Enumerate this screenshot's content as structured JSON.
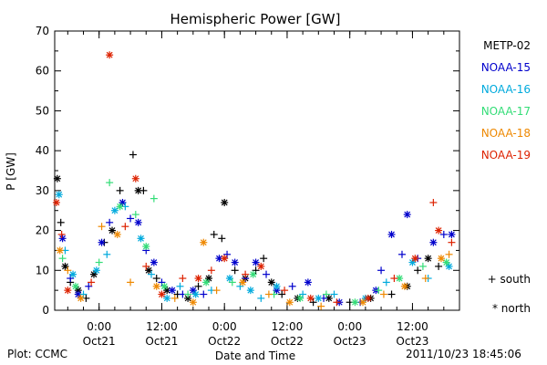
{
  "chart_data": {
    "type": "scatter",
    "title": "Hemispheric Power [GW]",
    "ylabel": "P [GW]",
    "xlabel": "Date and Time",
    "ylim": [
      0,
      70
    ],
    "y_ticks": [
      0,
      10,
      20,
      30,
      40,
      50,
      60,
      70
    ],
    "xlim": [
      "2011-10-20 15:30",
      "2011-10-23 21:00"
    ],
    "x_ticks": [
      {
        "t": "2011-10-21 00:00",
        "label1": "0:00",
        "label2": "Oct21"
      },
      {
        "t": "2011-10-21 12:00",
        "label1": "12:00",
        "label2": "Oct21"
      },
      {
        "t": "2011-10-22 00:00",
        "label1": "0:00",
        "label2": "Oct22"
      },
      {
        "t": "2011-10-22 12:00",
        "label1": "12:00",
        "label2": "Oct22"
      },
      {
        "t": "2011-10-23 00:00",
        "label1": "0:00",
        "label2": "Oct23"
      },
      {
        "t": "2011-10-23 12:00",
        "label1": "12:00",
        "label2": "Oct23"
      }
    ],
    "marker_legend": {
      "south": "+ south",
      "north": "* north"
    },
    "series": [
      {
        "name": "METP-02",
        "color": "#000000",
        "points": [
          [
            "2011-10-20 16:00",
            33,
            "n"
          ],
          [
            "2011-10-20 16:40",
            22,
            "s"
          ],
          [
            "2011-10-20 17:30",
            11,
            "n"
          ],
          [
            "2011-10-20 18:30",
            7,
            "s"
          ],
          [
            "2011-10-20 20:00",
            5,
            "n"
          ],
          [
            "2011-10-20 21:30",
            3,
            "s"
          ],
          [
            "2011-10-20 23:00",
            9,
            "n"
          ],
          [
            "2011-10-21 01:00",
            17,
            "s"
          ],
          [
            "2011-10-21 02:30",
            20,
            "n"
          ],
          [
            "2011-10-21 04:00",
            30,
            "s"
          ],
          [
            "2011-10-21 06:30",
            39,
            "s"
          ],
          [
            "2011-10-21 07:30",
            30,
            "n"
          ],
          [
            "2011-10-21 08:30",
            30,
            "s"
          ],
          [
            "2011-10-21 09:30",
            10,
            "n"
          ],
          [
            "2011-10-21 11:00",
            8,
            "s"
          ],
          [
            "2011-10-21 13:00",
            5,
            "n"
          ],
          [
            "2011-10-21 15:00",
            4,
            "s"
          ],
          [
            "2011-10-21 17:00",
            3,
            "n"
          ],
          [
            "2011-10-21 19:00",
            6,
            "s"
          ],
          [
            "2011-10-21 21:00",
            8,
            "n"
          ],
          [
            "2011-10-21 22:00",
            19,
            "s"
          ],
          [
            "2011-10-21 23:30",
            18,
            "s"
          ],
          [
            "2011-10-22 00:00",
            27,
            "n"
          ],
          [
            "2011-10-22 02:00",
            10,
            "s"
          ],
          [
            "2011-10-22 04:00",
            8,
            "n"
          ],
          [
            "2011-10-22 06:00",
            10,
            "s"
          ],
          [
            "2011-10-22 07:30",
            13,
            "s"
          ],
          [
            "2011-10-22 09:00",
            7,
            "n"
          ],
          [
            "2011-10-22 11:00",
            4,
            "s"
          ],
          [
            "2011-10-22 14:00",
            3,
            "n"
          ],
          [
            "2011-10-22 17:00",
            2,
            "s"
          ],
          [
            "2011-10-22 20:00",
            3,
            "n"
          ],
          [
            "2011-10-23 00:00",
            2,
            "s"
          ],
          [
            "2011-10-23 04:00",
            3,
            "n"
          ],
          [
            "2011-10-23 08:00",
            4,
            "s"
          ],
          [
            "2011-10-23 11:00",
            6,
            "n"
          ],
          [
            "2011-10-23 13:00",
            10,
            "s"
          ],
          [
            "2011-10-23 15:00",
            13,
            "n"
          ],
          [
            "2011-10-23 17:00",
            11,
            "s"
          ]
        ]
      },
      {
        "name": "NOAA-15",
        "color": "#0000cc",
        "points": [
          [
            "2011-10-20 17:00",
            18,
            "n"
          ],
          [
            "2011-10-20 18:30",
            8,
            "s"
          ],
          [
            "2011-10-20 20:00",
            4,
            "n"
          ],
          [
            "2011-10-20 22:00",
            6,
            "s"
          ],
          [
            "2011-10-21 00:30",
            17,
            "n"
          ],
          [
            "2011-10-21 02:00",
            22,
            "s"
          ],
          [
            "2011-10-21 04:30",
            27,
            "n"
          ],
          [
            "2011-10-21 06:00",
            23,
            "s"
          ],
          [
            "2011-10-21 07:30",
            22,
            "n"
          ],
          [
            "2011-10-21 09:00",
            15,
            "s"
          ],
          [
            "2011-10-21 10:30",
            12,
            "n"
          ],
          [
            "2011-10-21 12:00",
            7,
            "s"
          ],
          [
            "2011-10-21 14:00",
            5,
            "n"
          ],
          [
            "2011-10-21 16:00",
            4,
            "s"
          ],
          [
            "2011-10-21 18:00",
            5,
            "n"
          ],
          [
            "2011-10-21 20:00",
            4,
            "s"
          ],
          [
            "2011-10-21 23:00",
            13,
            "n"
          ],
          [
            "2011-10-22 00:30",
            14,
            "s"
          ],
          [
            "2011-10-22 02:00",
            12,
            "n"
          ],
          [
            "2011-10-22 04:00",
            8,
            "s"
          ],
          [
            "2011-10-22 06:00",
            12,
            "n"
          ],
          [
            "2011-10-22 08:00",
            9,
            "s"
          ],
          [
            "2011-10-22 10:00",
            5,
            "n"
          ],
          [
            "2011-10-22 13:00",
            6,
            "s"
          ],
          [
            "2011-10-22 16:00",
            7,
            "n"
          ],
          [
            "2011-10-22 19:00",
            3,
            "s"
          ],
          [
            "2011-10-22 22:00",
            2,
            "n"
          ],
          [
            "2011-10-23 02:00",
            2,
            "s"
          ],
          [
            "2011-10-23 05:00",
            5,
            "n"
          ],
          [
            "2011-10-23 06:00",
            10,
            "s"
          ],
          [
            "2011-10-23 08:00",
            19,
            "n"
          ],
          [
            "2011-10-23 10:00",
            14,
            "s"
          ],
          [
            "2011-10-23 11:00",
            24,
            "n"
          ],
          [
            "2011-10-23 13:00",
            13,
            "s"
          ],
          [
            "2011-10-23 16:00",
            17,
            "n"
          ],
          [
            "2011-10-23 18:00",
            19,
            "s"
          ],
          [
            "2011-10-23 19:30",
            19,
            "n"
          ]
        ]
      },
      {
        "name": "NOAA-16",
        "color": "#00aadd",
        "points": [
          [
            "2011-10-20 16:20",
            29,
            "n"
          ],
          [
            "2011-10-20 17:30",
            15,
            "s"
          ],
          [
            "2011-10-20 19:00",
            9,
            "n"
          ],
          [
            "2011-10-20 21:00",
            4,
            "s"
          ],
          [
            "2011-10-20 23:30",
            10,
            "n"
          ],
          [
            "2011-10-21 01:30",
            14,
            "s"
          ],
          [
            "2011-10-21 03:00",
            25,
            "n"
          ],
          [
            "2011-10-21 05:00",
            26,
            "s"
          ],
          [
            "2011-10-21 08:00",
            18,
            "n"
          ],
          [
            "2011-10-21 10:00",
            9,
            "s"
          ],
          [
            "2011-10-21 13:00",
            3,
            "n"
          ],
          [
            "2011-10-21 15:30",
            6,
            "s"
          ],
          [
            "2011-10-21 18:30",
            4,
            "n"
          ],
          [
            "2011-10-21 21:30",
            5,
            "s"
          ],
          [
            "2011-10-22 01:00",
            8,
            "n"
          ],
          [
            "2011-10-22 03:00",
            6,
            "s"
          ],
          [
            "2011-10-22 05:00",
            5,
            "n"
          ],
          [
            "2011-10-22 07:00",
            3,
            "s"
          ],
          [
            "2011-10-22 10:00",
            6,
            "n"
          ],
          [
            "2011-10-22 15:00",
            4,
            "s"
          ],
          [
            "2011-10-22 18:00",
            3,
            "n"
          ],
          [
            "2011-10-22 21:00",
            4,
            "s"
          ],
          [
            "2011-10-23 03:00",
            3,
            "n"
          ],
          [
            "2011-10-23 07:00",
            7,
            "s"
          ],
          [
            "2011-10-23 12:00",
            12,
            "n"
          ],
          [
            "2011-10-23 15:00",
            8,
            "s"
          ],
          [
            "2011-10-23 19:00",
            11,
            "n"
          ]
        ]
      },
      {
        "name": "NOAA-17",
        "color": "#33dd77",
        "points": [
          [
            "2011-10-20 17:00",
            13,
            "s"
          ],
          [
            "2011-10-20 19:30",
            6,
            "n"
          ],
          [
            "2011-10-21 00:00",
            12,
            "s"
          ],
          [
            "2011-10-21 02:00",
            32,
            "s"
          ],
          [
            "2011-10-21 04:00",
            26,
            "n"
          ],
          [
            "2011-10-21 07:00",
            24,
            "s"
          ],
          [
            "2011-10-21 09:00",
            16,
            "n"
          ],
          [
            "2011-10-21 10:30",
            28,
            "s"
          ],
          [
            "2011-10-21 12:30",
            6,
            "n"
          ],
          [
            "2011-10-21 17:00",
            4,
            "s"
          ],
          [
            "2011-10-21 20:30",
            7,
            "n"
          ],
          [
            "2011-10-22 01:30",
            7,
            "s"
          ],
          [
            "2011-10-22 05:30",
            9,
            "n"
          ],
          [
            "2011-10-22 09:30",
            4,
            "s"
          ],
          [
            "2011-10-22 14:30",
            3,
            "n"
          ],
          [
            "2011-10-22 19:30",
            4,
            "s"
          ],
          [
            "2011-10-23 01:00",
            2,
            "n"
          ],
          [
            "2011-10-23 05:30",
            5,
            "s"
          ],
          [
            "2011-10-23 09:30",
            8,
            "n"
          ],
          [
            "2011-10-23 14:00",
            11,
            "s"
          ],
          [
            "2011-10-23 18:30",
            12,
            "n"
          ]
        ]
      },
      {
        "name": "NOAA-18",
        "color": "#ee8800",
        "points": [
          [
            "2011-10-20 16:30",
            15,
            "n"
          ],
          [
            "2011-10-20 18:00",
            10,
            "s"
          ],
          [
            "2011-10-20 20:30",
            3,
            "n"
          ],
          [
            "2011-10-21 00:30",
            21,
            "s"
          ],
          [
            "2011-10-21 03:30",
            19,
            "n"
          ],
          [
            "2011-10-21 06:00",
            7,
            "s"
          ],
          [
            "2011-10-21 11:00",
            6,
            "n"
          ],
          [
            "2011-10-21 14:30",
            3,
            "s"
          ],
          [
            "2011-10-21 18:00",
            2,
            "n"
          ],
          [
            "2011-10-21 20:00",
            17,
            "n"
          ],
          [
            "2011-10-21 22:30",
            5,
            "s"
          ],
          [
            "2011-10-22 03:30",
            7,
            "n"
          ],
          [
            "2011-10-22 08:30",
            4,
            "s"
          ],
          [
            "2011-10-22 12:30",
            2,
            "n"
          ],
          [
            "2011-10-22 18:30",
            1,
            "s"
          ],
          [
            "2011-10-23 02:30",
            2,
            "n"
          ],
          [
            "2011-10-23 06:30",
            4,
            "s"
          ],
          [
            "2011-10-23 10:30",
            6,
            "n"
          ],
          [
            "2011-10-23 14:30",
            8,
            "s"
          ],
          [
            "2011-10-23 17:30",
            13,
            "n"
          ],
          [
            "2011-10-23 19:00",
            14,
            "s"
          ]
        ]
      },
      {
        "name": "NOAA-19",
        "color": "#dd2200",
        "points": [
          [
            "2011-10-20 15:50",
            27,
            "n"
          ],
          [
            "2011-10-20 16:50",
            19,
            "s"
          ],
          [
            "2011-10-20 18:00",
            5,
            "n"
          ],
          [
            "2011-10-20 22:30",
            7,
            "s"
          ],
          [
            "2011-10-21 02:00",
            64,
            "n"
          ],
          [
            "2011-10-21 05:00",
            21,
            "s"
          ],
          [
            "2011-10-21 07:00",
            33,
            "n"
          ],
          [
            "2011-10-21 09:00",
            11,
            "s"
          ],
          [
            "2011-10-21 12:00",
            4,
            "n"
          ],
          [
            "2011-10-21 16:00",
            8,
            "s"
          ],
          [
            "2011-10-21 19:00",
            8,
            "n"
          ],
          [
            "2011-10-21 21:30",
            10,
            "s"
          ],
          [
            "2011-10-22 00:00",
            13,
            "n"
          ],
          [
            "2011-10-22 04:00",
            9,
            "s"
          ],
          [
            "2011-10-22 07:00",
            11,
            "n"
          ],
          [
            "2011-10-22 11:30",
            5,
            "s"
          ],
          [
            "2011-10-22 16:30",
            3,
            "n"
          ],
          [
            "2011-10-22 21:30",
            2,
            "s"
          ],
          [
            "2011-10-23 03:30",
            3,
            "n"
          ],
          [
            "2011-10-23 08:30",
            8,
            "s"
          ],
          [
            "2011-10-23 12:30",
            13,
            "n"
          ],
          [
            "2011-10-23 16:00",
            27,
            "s"
          ],
          [
            "2011-10-23 17:00",
            20,
            "n"
          ],
          [
            "2011-10-23 19:30",
            17,
            "s"
          ]
        ]
      }
    ]
  },
  "footer": {
    "credit": "Plot: CCMC",
    "timestamp": "2011/10/23 18:45:06"
  }
}
